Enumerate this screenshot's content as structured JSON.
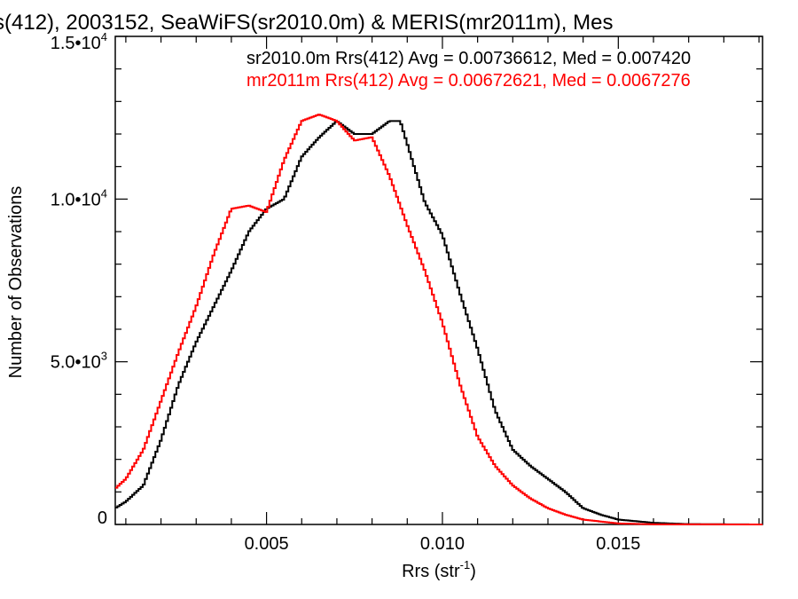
{
  "chart_data": {
    "type": "line",
    "title": "s(412), 2003152, SeaWiFS(sr2010.0m) & MERIS(mr2011m), Mes",
    "xlabel": "Rrs (str",
    "xlabel_sup": "-1",
    "xlabel_close": ")",
    "ylabel": "Number of Observations",
    "xlim": [
      0.0007,
      0.0191
    ],
    "ylim": [
      0,
      15000
    ],
    "x_ticks": [
      0.005,
      0.01,
      0.015
    ],
    "x_tick_labels": [
      "0.005",
      "0.010",
      "0.015"
    ],
    "y_tick_labels": [
      {
        "value": 0,
        "base": "0",
        "exp": ""
      },
      {
        "value": 5000,
        "base": "5.0•10",
        "exp": "3"
      },
      {
        "value": 10000,
        "base": "1.0•10",
        "exp": "4"
      },
      {
        "value": 15000,
        "base": "1.5•10",
        "exp": "4"
      }
    ],
    "grid": false,
    "legend_position": "top",
    "annotations": [
      {
        "text": "sr2010.0m Rrs(412) Avg = 0.00736612, Med = 0.007420",
        "color": "#000000"
      },
      {
        "text": "mr2011m Rrs(412) Avg = 0.00672621, Med = 0.0067276",
        "color": "#ff0000"
      }
    ],
    "series": [
      {
        "color": "#000000",
        "x": [
          0.0007,
          0.001,
          0.0015,
          0.002,
          0.0025,
          0.003,
          0.0035,
          0.004,
          0.0045,
          0.005,
          0.0055,
          0.006,
          0.0065,
          0.007,
          0.0075,
          0.008,
          0.0085,
          0.0088,
          0.009,
          0.0095,
          0.01,
          0.0105,
          0.011,
          0.0115,
          0.012,
          0.0125,
          0.013,
          0.0135,
          0.014,
          0.0145,
          0.015,
          0.016,
          0.017,
          0.0191
        ],
        "y": [
          500,
          700,
          1200,
          2600,
          4300,
          5600,
          6700,
          7800,
          9000,
          9700,
          10000,
          11300,
          11900,
          12400,
          12000,
          12000,
          12400,
          12400,
          11700,
          9900,
          8900,
          7100,
          5400,
          3500,
          2300,
          1800,
          1400,
          1000,
          500,
          300,
          150,
          50,
          10,
          0
        ]
      },
      {
        "color": "#ff0000",
        "x": [
          0.0007,
          0.001,
          0.0015,
          0.002,
          0.0025,
          0.003,
          0.0035,
          0.004,
          0.0045,
          0.005,
          0.0055,
          0.006,
          0.0065,
          0.007,
          0.0075,
          0.008,
          0.0085,
          0.009,
          0.0095,
          0.01,
          0.0105,
          0.011,
          0.0115,
          0.012,
          0.0125,
          0.013,
          0.0135,
          0.014,
          0.015,
          0.016,
          0.0191
        ],
        "y": [
          1100,
          1400,
          2300,
          3800,
          5300,
          6700,
          8300,
          9700,
          9800,
          9600,
          11200,
          12400,
          12600,
          12400,
          11800,
          11900,
          10700,
          9200,
          7800,
          6200,
          4300,
          2700,
          1800,
          1200,
          800,
          500,
          300,
          150,
          30,
          5,
          0
        ]
      }
    ]
  }
}
